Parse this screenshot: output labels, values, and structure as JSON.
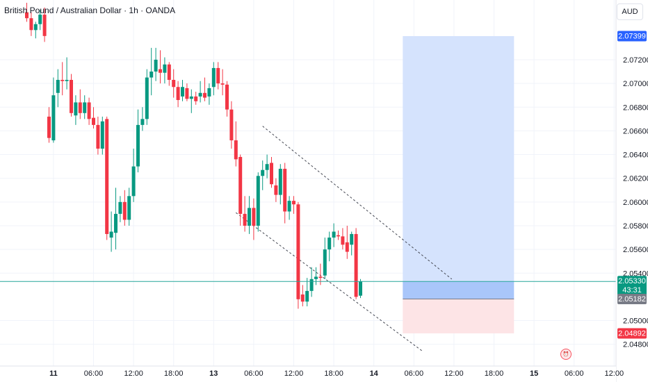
{
  "header": {
    "title": "British Pound / Australian Dollar · 1h · OANDA"
  },
  "currency_button": {
    "label": "AUD"
  },
  "colors": {
    "up": "#089981",
    "down": "#f23645",
    "grid": "#f0f3fa",
    "target_zone": "#d5e3fd",
    "stop_zone": "#fde4e6",
    "entry_zone": "#a9c6fa",
    "price_line": "#26a69a"
  },
  "icons": {
    "alert": "alert-clock-icon"
  },
  "chart_data": {
    "type": "candlestick",
    "title": "British Pound / Australian Dollar · 1h · OANDA",
    "ylim": [
      2.0468,
      2.076
    ],
    "y_axis_ticks": [
      "2.04800",
      "2.05000",
      "2.05400",
      "2.05600",
      "2.05800",
      "2.06000",
      "2.06200",
      "2.06400",
      "2.06600",
      "2.06800",
      "2.07000",
      "2.07200"
    ],
    "x_axis_ticks": [
      "11",
      "06:00",
      "12:00",
      "18:00",
      "13",
      "06:00",
      "12:00",
      "18:00",
      "14",
      "06:00",
      "12:00",
      "18:00",
      "15",
      "06:00",
      "12:00"
    ],
    "x_tick_bar_index": [
      6,
      15,
      24,
      33,
      42,
      51,
      60,
      69,
      78,
      87,
      96,
      105,
      114,
      123,
      132
    ],
    "grid": true,
    "price_labels": {
      "target": "2.07399",
      "current": "2.05330",
      "countdown": "43:31",
      "entry": "2.05182",
      "stop": "2.04892"
    },
    "position_tool": {
      "type": "long",
      "entry": 2.05182,
      "target": 2.07399,
      "stop": 2.04892,
      "current": 2.0533,
      "start_bar": 84.5,
      "end_bar": 109.5
    },
    "trendlines": [
      {
        "from": [
          53,
          2.0664
        ],
        "to": [
          95.5,
          2.0535
        ]
      },
      {
        "from": [
          47,
          2.0591
        ],
        "to": [
          89,
          2.0474
        ]
      }
    ],
    "ohlc": [
      [
        2.076,
        2.0768,
        2.0752,
        2.0755
      ],
      [
        2.0755,
        2.076,
        2.074,
        2.0745
      ],
      [
        2.0745,
        2.0752,
        2.0738,
        2.075
      ],
      [
        2.075,
        2.0762,
        2.0745,
        2.0758
      ],
      [
        2.0758,
        2.0764,
        2.0735,
        2.074
      ],
      [
        2.0672,
        2.068,
        2.065,
        2.0654
      ],
      [
        2.0652,
        2.0705,
        2.065,
        2.069
      ],
      [
        2.0692,
        2.0712,
        2.068,
        2.0703
      ],
      [
        2.0703,
        2.0718,
        2.069,
        2.0702
      ],
      [
        2.0702,
        2.0722,
        2.0695,
        2.0703
      ],
      [
        2.0703,
        2.0708,
        2.0672,
        2.0675
      ],
      [
        2.0673,
        2.069,
        2.0665,
        2.0684
      ],
      [
        2.0684,
        2.0695,
        2.067,
        2.0675
      ],
      [
        2.0675,
        2.069,
        2.067,
        2.0684
      ],
      [
        2.0684,
        2.0688,
        2.0665,
        2.067
      ],
      [
        2.0671,
        2.068,
        2.0662,
        2.0665
      ],
      [
        2.0665,
        2.0672,
        2.064,
        2.0645
      ],
      [
        2.0645,
        2.0672,
        2.064,
        2.0668
      ],
      [
        2.067,
        2.0672,
        2.0568,
        2.0573
      ],
      [
        2.057,
        2.0592,
        2.0558,
        2.0575
      ],
      [
        2.0574,
        2.0612,
        2.056,
        2.059
      ],
      [
        2.059,
        2.0605,
        2.0583,
        2.06
      ],
      [
        2.06,
        2.061,
        2.058,
        2.0585
      ],
      [
        2.0585,
        2.0612,
        2.058,
        2.0605
      ],
      [
        2.0605,
        2.0645,
        2.06,
        2.063
      ],
      [
        2.063,
        2.0678,
        2.0625,
        2.0665
      ],
      [
        2.0665,
        2.068,
        2.066,
        2.067
      ],
      [
        2.067,
        2.0712,
        2.0665,
        2.0705
      ],
      [
        2.0705,
        2.073,
        2.069,
        2.071
      ],
      [
        2.071,
        2.073,
        2.0702,
        2.072
      ],
      [
        2.0712,
        2.0728,
        2.07,
        2.0709
      ],
      [
        2.0709,
        2.0722,
        2.07,
        2.0716
      ],
      [
        2.0716,
        2.0718,
        2.0698,
        2.0703
      ],
      [
        2.0703,
        2.0712,
        2.0688,
        2.0697
      ],
      [
        2.0697,
        2.0702,
        2.068,
        2.0686
      ],
      [
        2.0689,
        2.0703,
        2.0685,
        2.0697
      ],
      [
        2.0696,
        2.07,
        2.0685,
        2.0687
      ],
      [
        2.0687,
        2.0695,
        2.0675,
        2.0689
      ],
      [
        2.0689,
        2.0693,
        2.0682,
        2.0685
      ],
      [
        2.0689,
        2.0702,
        2.0684,
        2.0692
      ],
      [
        2.0692,
        2.0705,
        2.0685,
        2.0688
      ],
      [
        2.0689,
        2.07,
        2.0682,
        2.0696
      ],
      [
        2.0697,
        2.0718,
        2.069,
        2.0713
      ],
      [
        2.0713,
        2.0718,
        2.0695,
        2.07
      ],
      [
        2.07,
        2.0712,
        2.069,
        2.0699
      ],
      [
        2.0699,
        2.0702,
        2.0672,
        2.0678
      ],
      [
        2.0678,
        2.0685,
        2.0645,
        2.0652
      ],
      [
        2.0652,
        2.0668,
        2.063,
        2.0636
      ],
      [
        2.0638,
        2.064,
        2.058,
        2.059
      ],
      [
        2.059,
        2.0605,
        2.0575,
        2.058
      ],
      [
        2.058,
        2.0605,
        2.0573,
        2.0595
      ],
      [
        2.0595,
        2.0603,
        2.0568,
        2.058
      ],
      [
        2.058,
        2.0625,
        2.0575,
        2.0622
      ],
      [
        2.0622,
        2.0635,
        2.061,
        2.0627
      ],
      [
        2.0627,
        2.064,
        2.062,
        2.0632
      ],
      [
        2.0633,
        2.0638,
        2.0612,
        2.0615
      ],
      [
        2.0614,
        2.062,
        2.06,
        2.0606
      ],
      [
        2.0606,
        2.0632,
        2.0598,
        2.0628
      ],
      [
        2.0628,
        2.0633,
        2.0582,
        2.0592
      ],
      [
        2.0592,
        2.0605,
        2.0585,
        2.0601
      ],
      [
        2.0601,
        2.0605,
        2.059,
        2.0598
      ],
      [
        2.0598,
        2.06,
        2.051,
        2.0518
      ],
      [
        2.0522,
        2.053,
        2.0512,
        2.0516
      ],
      [
        2.0516,
        2.0536,
        2.0512,
        2.0525
      ],
      [
        2.0525,
        2.0545,
        2.052,
        2.0535
      ],
      [
        2.0535,
        2.0545,
        2.053,
        2.0537
      ],
      [
        2.0537,
        2.0548,
        2.053,
        2.0536
      ],
      [
        2.0538,
        2.057,
        2.0535,
        2.056
      ],
      [
        2.056,
        2.0575,
        2.055,
        2.057
      ],
      [
        2.057,
        2.0582,
        2.0562,
        2.0575
      ],
      [
        2.0572,
        2.0576,
        2.0568,
        2.0571
      ],
      [
        2.0571,
        2.0578,
        2.056,
        2.0564
      ],
      [
        2.0566,
        2.058,
        2.0552,
        2.0558
      ],
      [
        2.0564,
        2.0575,
        2.0555,
        2.0573
      ],
      [
        2.0573,
        2.0578,
        2.0518,
        2.052
      ],
      [
        2.0521,
        2.0535,
        2.0519,
        2.0533
      ]
    ],
    "ohlc_start_bar": 0
  }
}
